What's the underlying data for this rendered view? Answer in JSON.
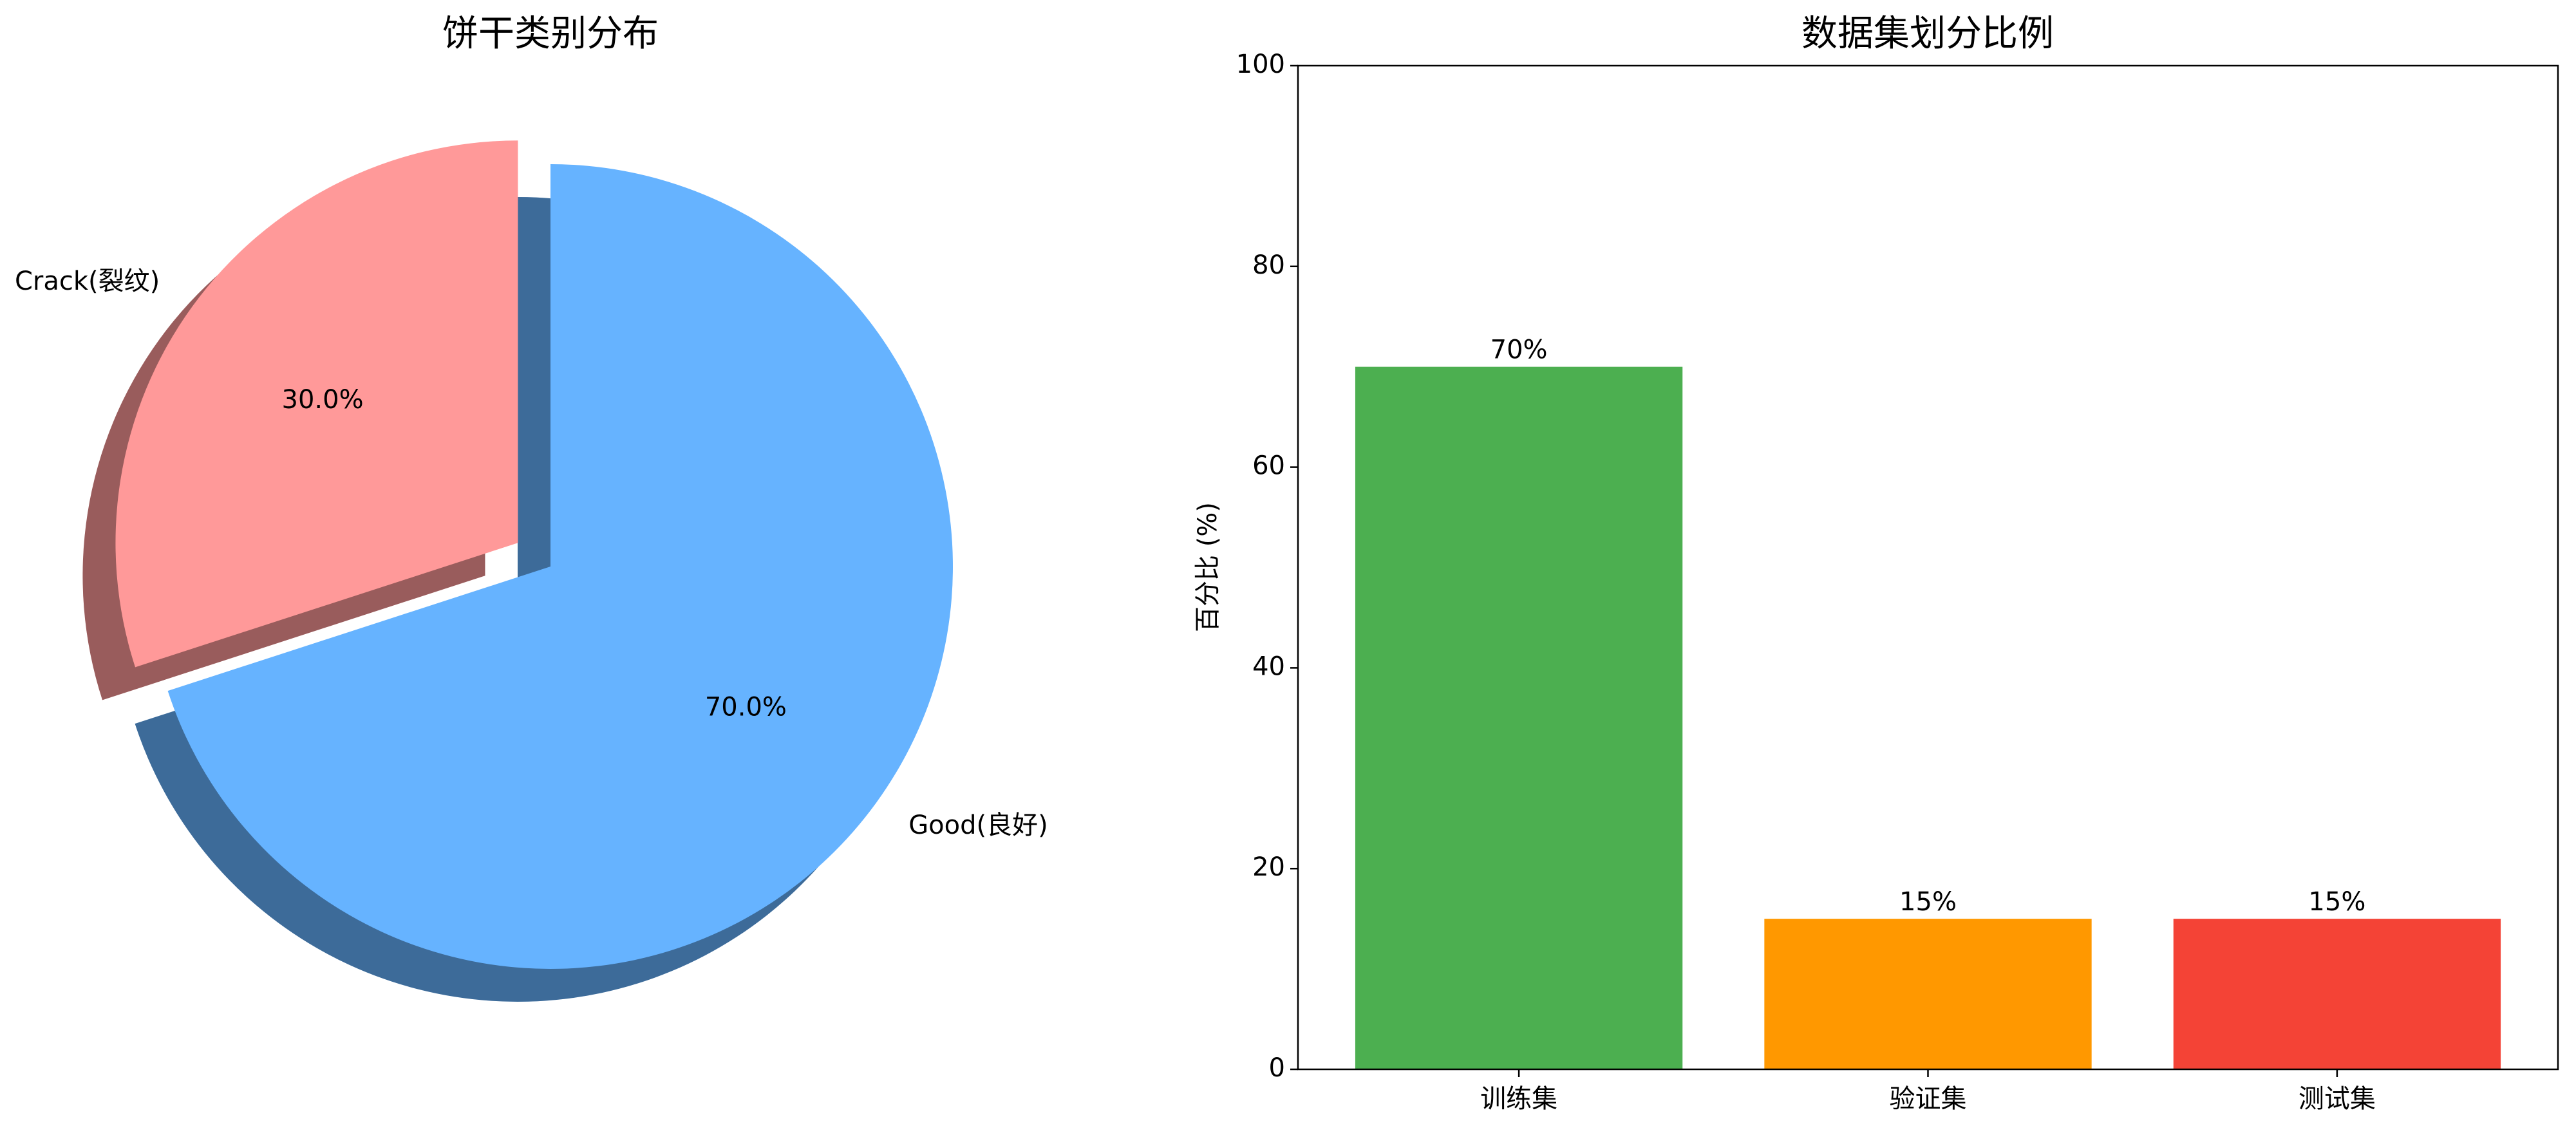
{
  "chart_data": [
    {
      "type": "pie",
      "title": "饼干类别分布",
      "categories": [
        "Crack(裂纹)",
        "Good(良好)"
      ],
      "values": [
        30,
        70
      ],
      "value_labels": [
        "30.0%",
        "70.0%"
      ],
      "colors": [
        "#ff9999",
        "#66b3ff"
      ],
      "explode": [
        0.1,
        0
      ],
      "shadow": true
    },
    {
      "type": "bar",
      "title": "数据集划分比例",
      "y_label": "百分比 (%)",
      "categories": [
        "训练集",
        "验证集",
        "测试集"
      ],
      "values": [
        70,
        15,
        15
      ],
      "value_labels": [
        "70%",
        "15%",
        "15%"
      ],
      "colors": [
        "#4caf50",
        "#ff9800",
        "#f44336"
      ],
      "ylim": [
        0,
        100
      ],
      "yticks": [
        0,
        20,
        40,
        60,
        80,
        100
      ]
    }
  ]
}
